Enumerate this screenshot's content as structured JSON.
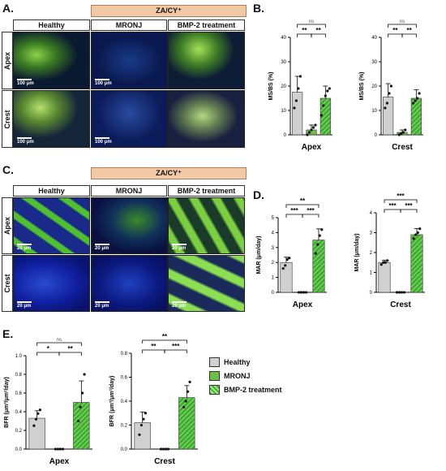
{
  "panels": {
    "A": {
      "letter": "A.",
      "group_header": "ZA/CY⁺",
      "columns": [
        "Healthy",
        "MRONJ",
        "BMP-2 treatment"
      ],
      "rows": [
        "Apex",
        "Crest"
      ],
      "scalebar": "100 μm"
    },
    "B": {
      "letter": "B."
    },
    "C": {
      "letter": "C.",
      "group_header": "ZA/CY⁺",
      "columns": [
        "Healthy",
        "MRONJ",
        "BMP-2 treatment"
      ],
      "rows": [
        "Apex",
        "Crest"
      ],
      "scalebar": "20 μm"
    },
    "D": {
      "letter": "D."
    },
    "E": {
      "letter": "E."
    }
  },
  "legend": [
    {
      "label": "Healthy",
      "color": "#d0d0d0",
      "pattern": "none"
    },
    {
      "label": "MRONJ",
      "color": "#6cc04a",
      "pattern": "none"
    },
    {
      "label": "BMP-2 treatment",
      "color": "#4cae3c",
      "pattern": "hatch"
    }
  ],
  "chart_data": [
    {
      "id": "B-apex",
      "type": "bar",
      "categories": [
        "Healthy",
        "MRONJ",
        "BMP-2 treatment"
      ],
      "values": [
        17.5,
        2,
        15
      ],
      "errors": [
        6.5,
        2,
        5
      ],
      "xlabel": "Apex",
      "ylabel": "MS/BS (%)",
      "ylim": [
        0,
        40
      ],
      "yticks": [
        0,
        10,
        20,
        30,
        40
      ],
      "points": [
        [
          11,
          14,
          19,
          24
        ],
        [
          0,
          1,
          2,
          3,
          4
        ],
        [
          8,
          12,
          16,
          18,
          19
        ]
      ],
      "sig": [
        {
          "from": 0,
          "to": 1,
          "label": "**"
        },
        {
          "from": 1,
          "to": 2,
          "label": "**"
        },
        {
          "from": 0,
          "to": 2,
          "label": "ns"
        }
      ]
    },
    {
      "id": "B-crest",
      "type": "bar",
      "categories": [
        "Healthy",
        "MRONJ",
        "BMP-2 treatment"
      ],
      "values": [
        15.5,
        1,
        15
      ],
      "errors": [
        5.5,
        1,
        3.5
      ],
      "xlabel": "Crest",
      "ylabel": "MS/BS (%)",
      "ylim": [
        0,
        40
      ],
      "yticks": [
        0,
        10,
        20,
        30,
        40
      ],
      "points": [
        [
          11,
          13,
          17,
          20
        ],
        [
          0,
          0.5,
          1,
          2
        ],
        [
          13,
          14,
          15,
          17
        ]
      ],
      "sig": [
        {
          "from": 0,
          "to": 1,
          "label": "**"
        },
        {
          "from": 1,
          "to": 2,
          "label": "**"
        },
        {
          "from": 0,
          "to": 2,
          "label": "ns"
        }
      ]
    },
    {
      "id": "D-apex",
      "type": "bar",
      "categories": [
        "Healthy",
        "MRONJ",
        "BMP-2 treatment"
      ],
      "values": [
        2.0,
        0,
        3.5
      ],
      "errors": [
        0.35,
        0,
        0.75
      ],
      "xlabel": "Apex",
      "ylabel": "MAR (μm/day)",
      "ylim": [
        0,
        5
      ],
      "yticks": [
        0,
        1,
        2,
        3,
        4,
        5
      ],
      "points": [
        [
          1.6,
          1.8,
          2.2,
          2.3
        ],
        [
          0,
          0,
          0,
          0
        ],
        [
          2.6,
          3.2,
          3.8,
          4.2
        ]
      ],
      "sig": [
        {
          "from": 0,
          "to": 1,
          "label": "***"
        },
        {
          "from": 1,
          "to": 2,
          "label": "***"
        },
        {
          "from": 0,
          "to": 2,
          "label": "**"
        }
      ]
    },
    {
      "id": "D-crest",
      "type": "bar",
      "categories": [
        "Healthy",
        "MRONJ",
        "BMP-2 treatment"
      ],
      "values": [
        1.5,
        0,
        2.9
      ],
      "errors": [
        0.12,
        0,
        0.3
      ],
      "xlabel": "Crest",
      "ylabel": "MAR (μm/day)",
      "ylim": [
        0,
        4
      ],
      "yticks": [
        0,
        1,
        2,
        3,
        4
      ],
      "points": [
        [
          1.4,
          1.5,
          1.5,
          1.6
        ],
        [
          0,
          0,
          0,
          0
        ],
        [
          2.7,
          2.9,
          3.0,
          3.2
        ]
      ],
      "sig": [
        {
          "from": 0,
          "to": 1,
          "label": "***"
        },
        {
          "from": 1,
          "to": 2,
          "label": "***"
        },
        {
          "from": 0,
          "to": 2,
          "label": "***"
        }
      ]
    },
    {
      "id": "E-apex",
      "type": "bar",
      "categories": [
        "Healthy",
        "MRONJ",
        "BMP-2 treatment"
      ],
      "values": [
        0.33,
        0,
        0.5
      ],
      "errors": [
        0.08,
        0,
        0.23
      ],
      "xlabel": "Apex",
      "ylabel": "BFR (μm³/μm²/day)",
      "ylim": [
        0,
        1.0
      ],
      "yticks": [
        0.0,
        0.2,
        0.4,
        0.6,
        0.8,
        1.0
      ],
      "points": [
        [
          0.25,
          0.32,
          0.38,
          0.42
        ],
        [
          0,
          0,
          0,
          0
        ],
        [
          0.3,
          0.45,
          0.6,
          0.8
        ]
      ],
      "sig": [
        {
          "from": 0,
          "to": 1,
          "label": "*"
        },
        {
          "from": 1,
          "to": 2,
          "label": "**"
        },
        {
          "from": 0,
          "to": 2,
          "label": "ns"
        }
      ]
    },
    {
      "id": "E-crest",
      "type": "bar",
      "categories": [
        "Healthy",
        "MRONJ",
        "BMP-2 treatment"
      ],
      "values": [
        0.22,
        0,
        0.43
      ],
      "errors": [
        0.09,
        0,
        0.1
      ],
      "xlabel": "Crest",
      "ylabel": "BFR (μm³/μm²/day)",
      "ylim": [
        0,
        0.8
      ],
      "yticks": [
        0.0,
        0.2,
        0.4,
        0.6,
        0.8
      ],
      "points": [
        [
          0.12,
          0.2,
          0.25,
          0.3
        ],
        [
          0,
          0,
          0,
          0
        ],
        [
          0.35,
          0.4,
          0.48,
          0.56
        ]
      ],
      "sig": [
        {
          "from": 0,
          "to": 1,
          "label": "**"
        },
        {
          "from": 1,
          "to": 2,
          "label": "***"
        },
        {
          "from": 0,
          "to": 2,
          "label": "**"
        }
      ]
    }
  ]
}
